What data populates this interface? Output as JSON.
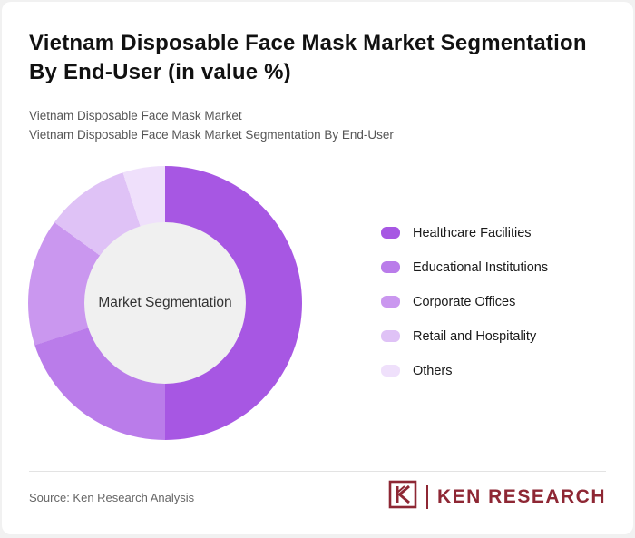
{
  "title": "Vietnam Disposable Face Mask Market Segmentation By End-User (in value %)",
  "subtitles": [
    "Vietnam Disposable Face Mask Market",
    "Vietnam Disposable Face Mask Market Segmentation By End-User"
  ],
  "chart_data": {
    "type": "pie",
    "subtype": "donut",
    "title": "Vietnam Disposable Face Mask Market Segmentation By End-User (in value %)",
    "center_label": "Market Segmentation",
    "categories": [
      "Healthcare Facilities",
      "Educational Institutions",
      "Corporate Offices",
      "Retail and Hospitality",
      "Others"
    ],
    "values": [
      50,
      20,
      15,
      10,
      5
    ],
    "unit": "%",
    "colors": [
      "#a757e3",
      "#ba7cea",
      "#ca97ef",
      "#dfc2f6",
      "#efe0fb"
    ],
    "legend_position": "right",
    "start_angle_deg": 0,
    "direction": "clockwise"
  },
  "footer": {
    "source": "Source: Ken Research Analysis",
    "brand": "KEN RESEARCH",
    "brand_color": "#8e2734"
  }
}
